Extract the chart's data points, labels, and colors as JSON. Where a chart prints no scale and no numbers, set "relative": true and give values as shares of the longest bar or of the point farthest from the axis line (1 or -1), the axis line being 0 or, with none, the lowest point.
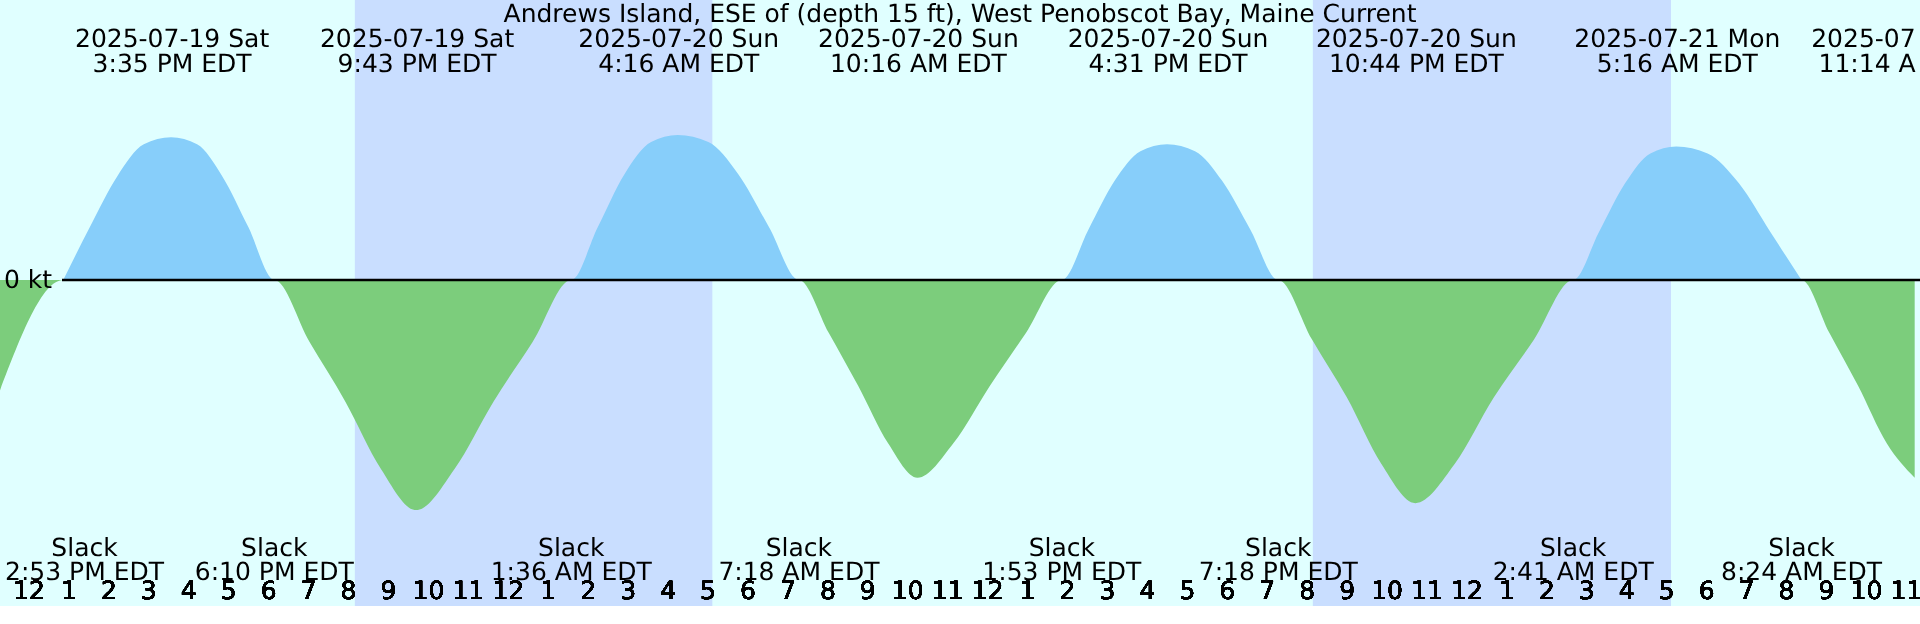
{
  "chart_data": {
    "type": "area",
    "relative": true,
    "title": "Andrews Island, ESE of (depth 15 ft), West Penobscot Bay, Maine Current",
    "xlim": [
      "2025-07-19T11:18",
      "2025-07-21T11:22"
    ],
    "xticks": [
      {
        "value": "2025-07-19T12:00",
        "label": "12"
      },
      {
        "value": "2025-07-19T13:00",
        "label": "1"
      },
      {
        "value": "2025-07-19T14:00",
        "label": "2"
      },
      {
        "value": "2025-07-19T15:00",
        "label": "3"
      },
      {
        "value": "2025-07-19T16:00",
        "label": "4"
      },
      {
        "value": "2025-07-19T17:00",
        "label": "5"
      },
      {
        "value": "2025-07-19T18:00",
        "label": "6"
      },
      {
        "value": "2025-07-19T19:00",
        "label": "7"
      },
      {
        "value": "2025-07-19T20:00",
        "label": "8"
      },
      {
        "value": "2025-07-19T21:00",
        "label": "9"
      },
      {
        "value": "2025-07-19T22:00",
        "label": "10"
      },
      {
        "value": "2025-07-19T23:00",
        "label": "11"
      },
      {
        "value": "2025-07-20T00:00",
        "label": "12"
      },
      {
        "value": "2025-07-20T01:00",
        "label": "1"
      },
      {
        "value": "2025-07-20T02:00",
        "label": "2"
      },
      {
        "value": "2025-07-20T03:00",
        "label": "3"
      },
      {
        "value": "2025-07-20T04:00",
        "label": "4"
      },
      {
        "value": "2025-07-20T05:00",
        "label": "5"
      },
      {
        "value": "2025-07-20T06:00",
        "label": "6"
      },
      {
        "value": "2025-07-20T07:00",
        "label": "7"
      },
      {
        "value": "2025-07-20T08:00",
        "label": "8"
      },
      {
        "value": "2025-07-20T09:00",
        "label": "9"
      },
      {
        "value": "2025-07-20T10:00",
        "label": "10"
      },
      {
        "value": "2025-07-20T11:00",
        "label": "11"
      },
      {
        "value": "2025-07-20T12:00",
        "label": "12"
      },
      {
        "value": "2025-07-20T13:00",
        "label": "1"
      },
      {
        "value": "2025-07-20T14:00",
        "label": "2"
      },
      {
        "value": "2025-07-20T15:00",
        "label": "3"
      },
      {
        "value": "2025-07-20T16:00",
        "label": "4"
      },
      {
        "value": "2025-07-20T17:00",
        "label": "5"
      },
      {
        "value": "2025-07-20T18:00",
        "label": "6"
      },
      {
        "value": "2025-07-20T19:00",
        "label": "7"
      },
      {
        "value": "2025-07-20T20:00",
        "label": "8"
      },
      {
        "value": "2025-07-20T21:00",
        "label": "9"
      },
      {
        "value": "2025-07-20T22:00",
        "label": "10"
      },
      {
        "value": "2025-07-20T23:00",
        "label": "11"
      },
      {
        "value": "2025-07-21T00:00",
        "label": "12"
      },
      {
        "value": "2025-07-21T01:00",
        "label": "1"
      },
      {
        "value": "2025-07-21T02:00",
        "label": "2"
      },
      {
        "value": "2025-07-21T03:00",
        "label": "3"
      },
      {
        "value": "2025-07-21T04:00",
        "label": "4"
      },
      {
        "value": "2025-07-21T05:00",
        "label": "5"
      },
      {
        "value": "2025-07-21T06:00",
        "label": "6"
      },
      {
        "value": "2025-07-21T07:00",
        "label": "7"
      },
      {
        "value": "2025-07-21T08:00",
        "label": "8"
      },
      {
        "value": "2025-07-21T09:00",
        "label": "9"
      },
      {
        "value": "2025-07-21T10:00",
        "label": "10"
      },
      {
        "value": "2025-07-21T11:00",
        "label": "11"
      }
    ],
    "annotations": [
      "Slack\n2:53 PM EDT",
      "Slack\n6:10 PM EDT",
      "Slack\n1:36 AM EDT",
      "Slack\n7:18 AM EDT",
      "Slack\n1:53 PM EDT",
      "Slack\n7:18 PM EDT",
      "Slack\n2:41 AM EDT",
      "Slack\n8:24 AM EDT"
    ],
    "x2lim": [
      "2025-07-19T11:18",
      "2025-07-21T11:22"
    ],
    "x2ticks": [
      {
        "value": "2025-07-19T15:35",
        "label": "2025-07-19 Sat\n3:35 PM EDT"
      },
      {
        "value": "2025-07-19T21:43",
        "label": "2025-07-19 Sat\n9:43 PM EDT"
      },
      {
        "value": "2025-07-20T04:16",
        "label": "2025-07-20 Sun\n4:16 AM EDT"
      },
      {
        "value": "2025-07-20T10:16",
        "label": "2025-07-20 Sun\n10:16 AM EDT"
      },
      {
        "value": "2025-07-20T16:31",
        "label": "2025-07-20 Sun\n4:31 PM EDT"
      },
      {
        "value": "2025-07-20T22:44",
        "label": "2025-07-20 Sun\n10:44 PM EDT"
      },
      {
        "value": "2025-07-21T05:16",
        "label": "2025-07-21 Mon\n5:16 AM EDT"
      },
      {
        "value": "2025-07-21T11:14",
        "label": "2025-07\n11:14 A"
      }
    ],
    "series": [
      {
        "color": "#87cefa",
        "x": [
          "2025-07-19T12:53",
          "2025-07-19T13:33",
          "2025-07-19T14:14",
          "2025-07-19T14:54",
          "2025-07-19T15:35",
          "2025-07-19T16:14",
          "2025-07-19T16:52",
          "2025-07-19T17:31",
          "2025-07-19T18:10",
          "2025-07-20T01:36",
          "2025-07-20T02:16",
          "2025-07-20T02:56",
          "2025-07-20T03:36",
          "2025-07-20T04:16",
          "2025-07-20T05:02",
          "2025-07-20T05:47",
          "2025-07-20T06:33",
          "2025-07-20T07:18",
          "2025-07-20T13:53",
          "2025-07-20T14:33",
          "2025-07-20T15:12",
          "2025-07-20T15:51",
          "2025-07-20T16:31",
          "2025-07-20T17:13",
          "2025-07-20T17:54",
          "2025-07-20T18:36",
          "2025-07-20T19:18",
          "2025-07-21T02:41",
          "2025-07-21T03:20",
          "2025-07-21T03:59",
          "2025-07-21T04:37",
          "2025-07-21T05:16",
          "2025-07-21T06:03",
          "2025-07-21T06:50",
          "2025-07-21T07:37",
          "2025-07-21T08:24"
        ],
        "values": [
          0,
          0.23,
          0.45,
          0.59,
          0.62,
          0.59,
          0.45,
          0.23,
          0,
          0,
          0.23,
          0.46,
          0.6,
          0.63,
          0.6,
          0.46,
          0.23,
          0,
          0,
          0.22,
          0.43,
          0.56,
          0.59,
          0.56,
          0.43,
          0.22,
          0,
          0,
          0.21,
          0.42,
          0.55,
          0.58,
          0.55,
          0.42,
          0.21,
          0
        ]
      },
      {
        "color": "#7ccd7c",
        "x": [
          "2025-07-19T11:18",
          "2025-07-19T12:53",
          "2025-07-19T18:10",
          "2025-07-19T19:03",
          "2025-07-19T19:57",
          "2025-07-19T20:50",
          "2025-07-19T21:43",
          "2025-07-19T22:41",
          "2025-07-19T23:39",
          "2025-07-20T00:38",
          "2025-07-20T01:36",
          "2025-07-20T07:18",
          "2025-07-20T08:03",
          "2025-07-20T08:47",
          "2025-07-20T09:32",
          "2025-07-20T10:16",
          "2025-07-20T11:10",
          "2025-07-20T12:05",
          "2025-07-20T12:59",
          "2025-07-20T13:53",
          "2025-07-20T19:18",
          "2025-07-20T20:09",
          "2025-07-20T21:01",
          "2025-07-20T21:53",
          "2025-07-20T22:44",
          "2025-07-20T23:43",
          "2025-07-21T00:42",
          "2025-07-21T01:42",
          "2025-07-21T02:41",
          "2025-07-21T08:24",
          "2025-07-21T09:06",
          "2025-07-21T09:49",
          "2025-07-21T10:32",
          "2025-07-21T11:14"
        ],
        "values": [
          -0.48,
          0,
          0,
          -0.27,
          -0.53,
          -0.82,
          -1,
          -0.82,
          -0.53,
          -0.27,
          0,
          0,
          -0.23,
          -0.46,
          -0.71,
          -0.86,
          -0.71,
          -0.46,
          -0.23,
          0,
          0,
          -0.26,
          -0.51,
          -0.8,
          -0.97,
          -0.8,
          -0.51,
          -0.26,
          0,
          0,
          -0.23,
          -0.46,
          -0.71,
          -0.86
        ]
      }
    ],
    "ref_lines": [
      {
        "axis": "y",
        "value": 0,
        "label": "0 kt",
        "color": "#000000"
      }
    ],
    "bands": [
      {
        "axis": "x",
        "from": "2025-07-19T20:11",
        "to": "2025-07-20T05:08",
        "color": "#c9deff"
      },
      {
        "axis": "x",
        "from": "2025-07-20T20:10",
        "to": "2025-07-21T05:08",
        "color": "#c9deff"
      }
    ]
  }
}
